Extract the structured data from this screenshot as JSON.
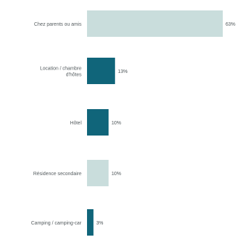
{
  "chart_data": {
    "type": "bar",
    "orientation": "horizontal",
    "categories": [
      "Chez parents ou amis",
      "Location / chambre d'hôtes",
      "Hôtel",
      "Résidence secondaire",
      "Camping / camping-car"
    ],
    "values": [
      63,
      13,
      10,
      10,
      3
    ],
    "value_labels": [
      "63%",
      "13%",
      "10%",
      "10%",
      "3%"
    ],
    "unit": "%",
    "bar_colors": [
      "#c9dddc",
      "#10657a",
      "#10657a",
      "#c9dddc",
      "#10657a"
    ],
    "xlim": [
      0,
      63
    ],
    "grid": false,
    "legend": "none"
  }
}
